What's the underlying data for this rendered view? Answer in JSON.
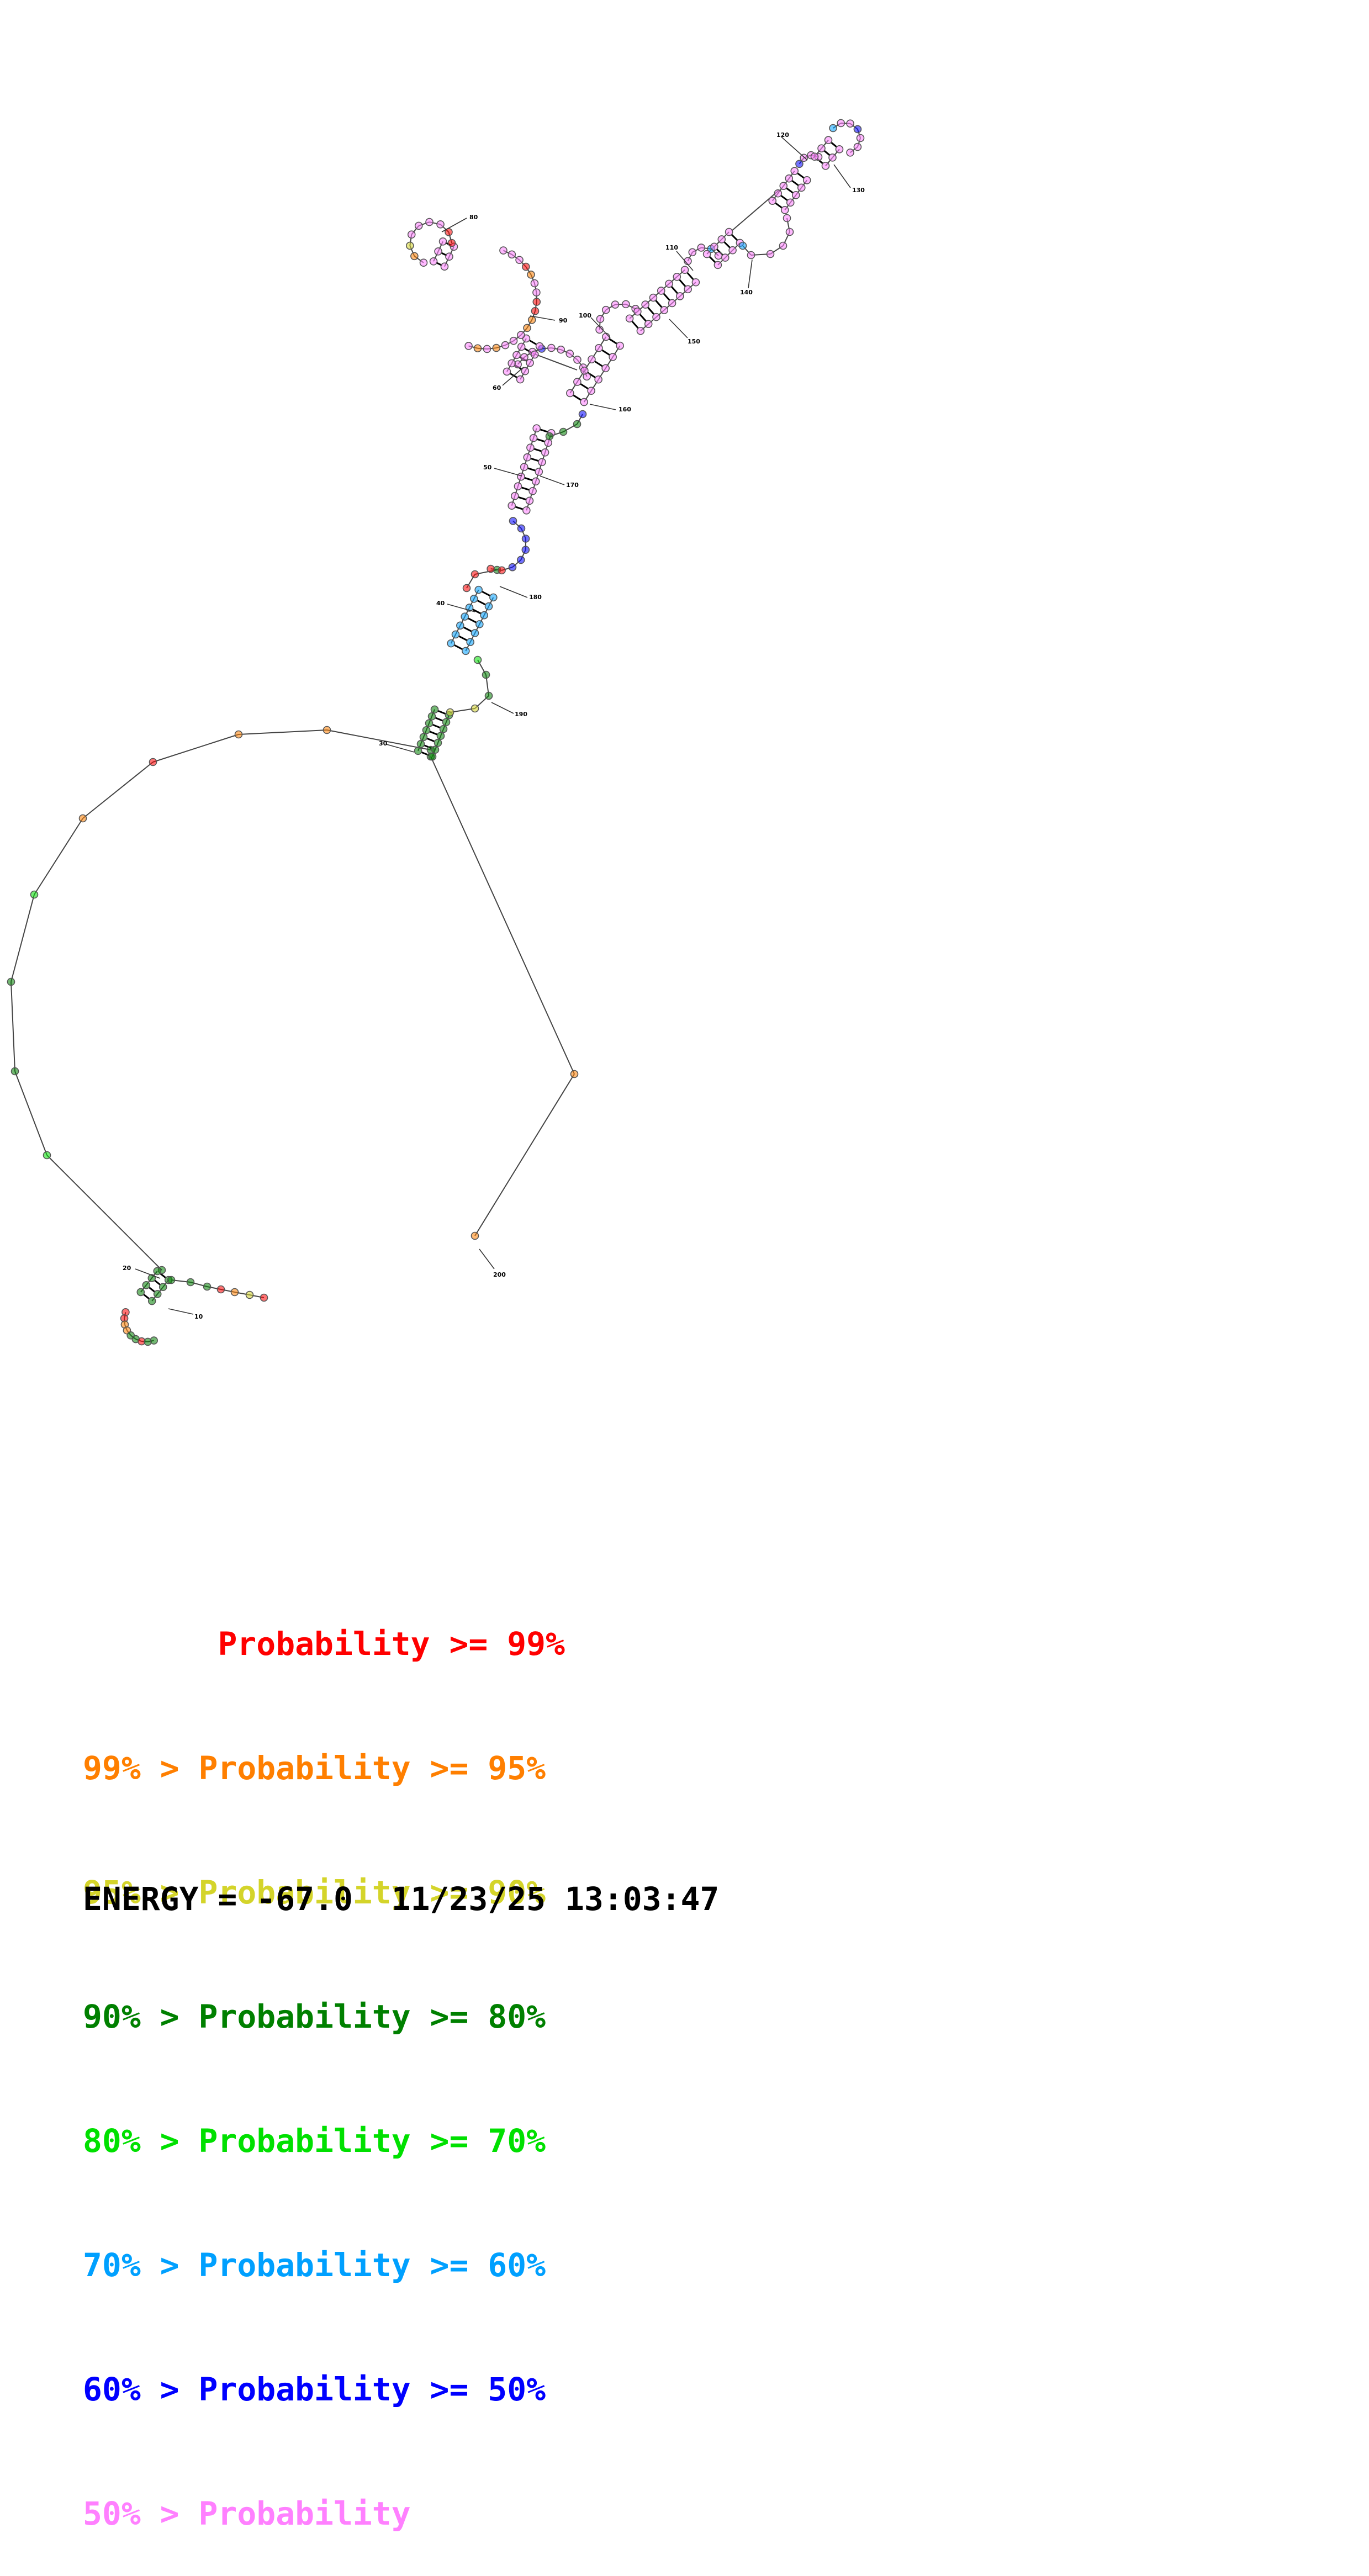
{
  "colors": {
    "p99": "#ff0000",
    "p95": "#ff7f00",
    "p90": "#d4d42a",
    "p80": "#008000",
    "p70": "#00e000",
    "p60": "#00a0ff",
    "p50": "#0000ff",
    "plow": "#ff80ff"
  },
  "diagram": {
    "index_labels": [
      "10",
      "20",
      "30",
      "40",
      "50",
      "60",
      "80",
      "90",
      "100",
      "110",
      "120",
      "130",
      "140",
      "150",
      "160",
      "170",
      "180",
      "190",
      "200"
    ]
  },
  "legend": {
    "rows": [
      {
        "prefix": "       ",
        "text": "Probability >= 99%",
        "color_key": "p99"
      },
      {
        "prefix": "99% > ",
        "text": "Probability >= 95%",
        "color_key": "p95"
      },
      {
        "prefix": "95% > ",
        "text": "Probability >= 90%",
        "color_key": "p90"
      },
      {
        "prefix": "90% > ",
        "text": "Probability >= 80%",
        "color_key": "p80"
      },
      {
        "prefix": "80% > ",
        "text": "Probability >= 70%",
        "color_key": "p70"
      },
      {
        "prefix": "70% > ",
        "text": "Probability >= 60%",
        "color_key": "p60"
      },
      {
        "prefix": "60% > ",
        "text": "Probability >= 50%",
        "color_key": "p50"
      },
      {
        "prefix": "50% > ",
        "text": "Probability",
        "color_key": "plow"
      }
    ]
  },
  "footer": {
    "energy": "ENERGY = -67.0",
    "timestamp": "11/23/25 13:03:47"
  }
}
